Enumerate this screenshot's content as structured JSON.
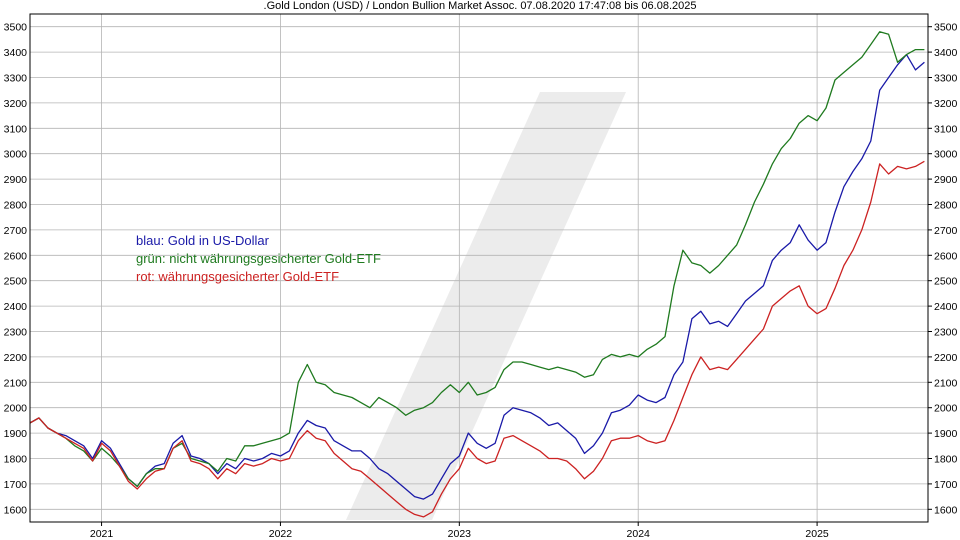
{
  "chart_data": {
    "type": "line",
    "title": ".Gold London (USD) / London Bullion Market Assoc. 07.08.2020 17:47:08 bis 06.08.2025",
    "xlabel": "",
    "ylabel": "",
    "xlim": [
      2020.6,
      2025.62
    ],
    "ylim": [
      1550,
      3550
    ],
    "y_ticks": [
      1600,
      1700,
      1800,
      1900,
      2000,
      2100,
      2200,
      2300,
      2400,
      2500,
      2600,
      2700,
      2800,
      2900,
      3000,
      3100,
      3200,
      3300,
      3400,
      3500
    ],
    "x_tick_labels": [
      "2021",
      "2022",
      "2023",
      "2024",
      "2025"
    ],
    "x_tick_positions": [
      2021,
      2022,
      2023,
      2024,
      2025
    ],
    "grid": true,
    "legend_position": "upper-left (text annotation)",
    "annotations": [
      {
        "text": "blau: Gold in US-Dollar",
        "color": "#1a1aa8"
      },
      {
        "text": "grün: nicht währungsgesicherter Gold-ETF",
        "color": "#1f7a1f"
      },
      {
        "text": "rot: währungsgesicherter Gold-ETF",
        "color": "#cc2222"
      }
    ],
    "series": [
      {
        "color": "#1a1aa8",
        "x": [
          2020.6,
          2020.65,
          2020.7,
          2020.75,
          2020.8,
          2020.85,
          2020.9,
          2020.95,
          2021.0,
          2021.05,
          2021.1,
          2021.15,
          2021.2,
          2021.25,
          2021.3,
          2021.35,
          2021.4,
          2021.45,
          2021.5,
          2021.55,
          2021.6,
          2021.65,
          2021.7,
          2021.75,
          2021.8,
          2021.85,
          2021.9,
          2021.95,
          2022.0,
          2022.05,
          2022.1,
          2022.15,
          2022.2,
          2022.25,
          2022.3,
          2022.35,
          2022.4,
          2022.45,
          2022.5,
          2022.55,
          2022.6,
          2022.65,
          2022.7,
          2022.75,
          2022.8,
          2022.85,
          2022.9,
          2022.95,
          2023.0,
          2023.05,
          2023.1,
          2023.15,
          2023.2,
          2023.25,
          2023.3,
          2023.35,
          2023.4,
          2023.45,
          2023.5,
          2023.55,
          2023.6,
          2023.65,
          2023.7,
          2023.75,
          2023.8,
          2023.85,
          2023.9,
          2023.95,
          2024.0,
          2024.05,
          2024.1,
          2024.15,
          2024.2,
          2024.25,
          2024.3,
          2024.35,
          2024.4,
          2024.45,
          2024.5,
          2024.55,
          2024.6,
          2024.65,
          2024.7,
          2024.75,
          2024.8,
          2024.85,
          2024.9,
          2024.95,
          2025.0,
          2025.05,
          2025.1,
          2025.15,
          2025.2,
          2025.25,
          2025.3,
          2025.35,
          2025.4,
          2025.45,
          2025.5,
          2025.55,
          2025.6
        ],
        "values": [
          1940,
          1960,
          1920,
          1900,
          1890,
          1870,
          1850,
          1800,
          1870,
          1840,
          1780,
          1720,
          1690,
          1740,
          1770,
          1780,
          1860,
          1890,
          1810,
          1800,
          1780,
          1740,
          1780,
          1760,
          1800,
          1790,
          1800,
          1820,
          1810,
          1830,
          1900,
          1950,
          1930,
          1920,
          1870,
          1850,
          1830,
          1830,
          1800,
          1760,
          1740,
          1710,
          1680,
          1650,
          1640,
          1660,
          1720,
          1780,
          1810,
          1900,
          1860,
          1840,
          1860,
          1970,
          2000,
          1990,
          1980,
          1960,
          1930,
          1940,
          1910,
          1880,
          1820,
          1850,
          1900,
          1980,
          1990,
          2010,
          2050,
          2030,
          2020,
          2040,
          2130,
          2180,
          2350,
          2380,
          2330,
          2340,
          2320,
          2370,
          2420,
          2450,
          2480,
          2580,
          2620,
          2650,
          2720,
          2660,
          2620,
          2650,
          2770,
          2870,
          2930,
          2980,
          3050,
          3250,
          3300,
          3350,
          3390,
          3330,
          3360
        ]
      },
      {
        "color": "#1f7a1f",
        "x": [
          2020.6,
          2020.65,
          2020.7,
          2020.75,
          2020.8,
          2020.85,
          2020.9,
          2020.95,
          2021.0,
          2021.05,
          2021.1,
          2021.15,
          2021.2,
          2021.25,
          2021.3,
          2021.35,
          2021.4,
          2021.45,
          2021.5,
          2021.55,
          2021.6,
          2021.65,
          2021.7,
          2021.75,
          2021.8,
          2021.85,
          2021.9,
          2021.95,
          2022.0,
          2022.05,
          2022.1,
          2022.15,
          2022.2,
          2022.25,
          2022.3,
          2022.35,
          2022.4,
          2022.45,
          2022.5,
          2022.55,
          2022.6,
          2022.65,
          2022.7,
          2022.75,
          2022.8,
          2022.85,
          2022.9,
          2022.95,
          2023.0,
          2023.05,
          2023.1,
          2023.15,
          2023.2,
          2023.25,
          2023.3,
          2023.35,
          2023.4,
          2023.45,
          2023.5,
          2023.55,
          2023.6,
          2023.65,
          2023.7,
          2023.75,
          2023.8,
          2023.85,
          2023.9,
          2023.95,
          2024.0,
          2024.05,
          2024.1,
          2024.15,
          2024.2,
          2024.25,
          2024.3,
          2024.35,
          2024.4,
          2024.45,
          2024.5,
          2024.55,
          2024.6,
          2024.65,
          2024.7,
          2024.75,
          2024.8,
          2024.85,
          2024.9,
          2024.95,
          2025.0,
          2025.05,
          2025.1,
          2025.15,
          2025.2,
          2025.25,
          2025.3,
          2025.35,
          2025.4,
          2025.45,
          2025.5,
          2025.55,
          2025.6
        ],
        "values": [
          1940,
          1960,
          1920,
          1900,
          1880,
          1850,
          1830,
          1790,
          1840,
          1810,
          1770,
          1720,
          1690,
          1740,
          1760,
          1760,
          1840,
          1860,
          1800,
          1790,
          1780,
          1750,
          1800,
          1790,
          1850,
          1850,
          1860,
          1870,
          1880,
          1900,
          2100,
          2170,
          2100,
          2090,
          2060,
          2050,
          2040,
          2020,
          2000,
          2040,
          2020,
          2000,
          1970,
          1990,
          2000,
          2020,
          2060,
          2090,
          2060,
          2100,
          2050,
          2060,
          2080,
          2150,
          2180,
          2180,
          2170,
          2160,
          2150,
          2160,
          2150,
          2140,
          2120,
          2130,
          2190,
          2210,
          2200,
          2210,
          2200,
          2230,
          2250,
          2280,
          2480,
          2620,
          2570,
          2560,
          2530,
          2560,
          2600,
          2640,
          2720,
          2810,
          2880,
          2960,
          3020,
          3060,
          3120,
          3150,
          3130,
          3180,
          3290,
          3320,
          3350,
          3380,
          3430,
          3480,
          3470,
          3360,
          3390,
          3410,
          3410
        ]
      },
      {
        "color": "#cc2222",
        "x": [
          2020.6,
          2020.65,
          2020.7,
          2020.75,
          2020.8,
          2020.85,
          2020.9,
          2020.95,
          2021.0,
          2021.05,
          2021.1,
          2021.15,
          2021.2,
          2021.25,
          2021.3,
          2021.35,
          2021.4,
          2021.45,
          2021.5,
          2021.55,
          2021.6,
          2021.65,
          2021.7,
          2021.75,
          2021.8,
          2021.85,
          2021.9,
          2021.95,
          2022.0,
          2022.05,
          2022.1,
          2022.15,
          2022.2,
          2022.25,
          2022.3,
          2022.35,
          2022.4,
          2022.45,
          2022.5,
          2022.55,
          2022.6,
          2022.65,
          2022.7,
          2022.75,
          2022.8,
          2022.85,
          2022.9,
          2022.95,
          2023.0,
          2023.05,
          2023.1,
          2023.15,
          2023.2,
          2023.25,
          2023.3,
          2023.35,
          2023.4,
          2023.45,
          2023.5,
          2023.55,
          2023.6,
          2023.65,
          2023.7,
          2023.75,
          2023.8,
          2023.85,
          2023.9,
          2023.95,
          2024.0,
          2024.05,
          2024.1,
          2024.15,
          2024.2,
          2024.25,
          2024.3,
          2024.35,
          2024.4,
          2024.45,
          2024.5,
          2024.55,
          2024.6,
          2024.65,
          2024.7,
          2024.75,
          2024.8,
          2024.85,
          2024.9,
          2024.95,
          2025.0,
          2025.05,
          2025.1,
          2025.15,
          2025.2,
          2025.25,
          2025.3,
          2025.35,
          2025.4,
          2025.45,
          2025.5,
          2025.55,
          2025.6
        ],
        "values": [
          1940,
          1960,
          1920,
          1900,
          1880,
          1860,
          1840,
          1790,
          1860,
          1830,
          1770,
          1710,
          1680,
          1720,
          1750,
          1760,
          1840,
          1870,
          1790,
          1780,
          1760,
          1720,
          1760,
          1740,
          1780,
          1770,
          1780,
          1800,
          1790,
          1800,
          1870,
          1910,
          1880,
          1870,
          1820,
          1790,
          1760,
          1750,
          1720,
          1690,
          1660,
          1630,
          1600,
          1580,
          1570,
          1590,
          1660,
          1720,
          1760,
          1840,
          1800,
          1780,
          1790,
          1880,
          1890,
          1870,
          1850,
          1830,
          1800,
          1800,
          1790,
          1760,
          1720,
          1750,
          1800,
          1870,
          1880,
          1880,
          1890,
          1870,
          1860,
          1870,
          1950,
          2040,
          2130,
          2200,
          2150,
          2160,
          2150,
          2190,
          2230,
          2270,
          2310,
          2400,
          2430,
          2460,
          2480,
          2400,
          2370,
          2390,
          2470,
          2560,
          2620,
          2700,
          2810,
          2960,
          2920,
          2950,
          2940,
          2950,
          2970
        ]
      }
    ]
  }
}
